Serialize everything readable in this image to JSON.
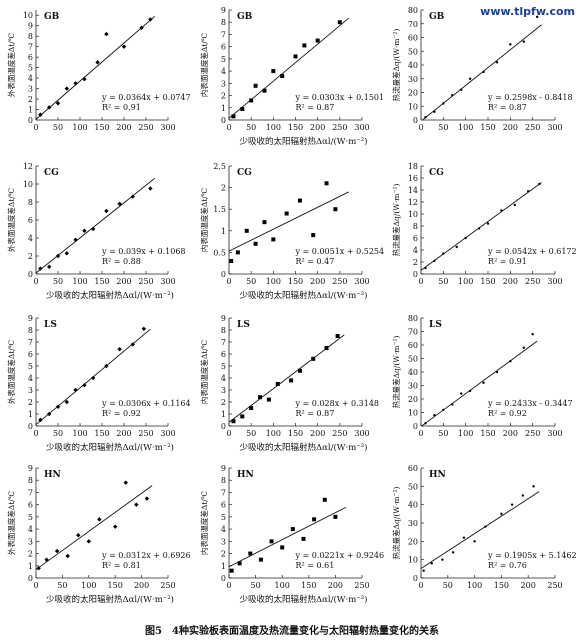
{
  "watermark": "www.tlpfw.com",
  "caption": "图5　4种实验板表面温度及热流量变化与太阳辐射热量变化的关系",
  "chart_data": [
    {
      "type": "scatter",
      "label": "GB",
      "marker": "diamond",
      "color": "#000000",
      "ylabel": "外表面温度差Δt/℃",
      "x": [
        10,
        30,
        50,
        70,
        90,
        110,
        140,
        160,
        200,
        240,
        260
      ],
      "values": [
        0.5,
        1.2,
        1.6,
        3.0,
        3.5,
        3.9,
        5.5,
        8.2,
        7.0,
        8.8,
        9.6
      ],
      "fit": {
        "x": [
          0,
          270
        ],
        "values": [
          0.07,
          9.9
        ]
      },
      "equation": "y = 0.0364x + 0.0747",
      "r2": "R² = 0.91",
      "xlim": [
        0,
        300
      ],
      "xticks": [
        0,
        50,
        100,
        150,
        200,
        250,
        300
      ],
      "ylim": [
        0,
        10.5
      ],
      "yticks": [
        0,
        1,
        2,
        3,
        4,
        5,
        6,
        7,
        8,
        9,
        10
      ]
    },
    {
      "type": "scatter",
      "label": "GB",
      "marker": "square",
      "color": "#000000",
      "ylabel": "内表面温度差Δt/℃",
      "xlabel": "少吸收的太阳辐射热Δαl/(W·m⁻²)",
      "x": [
        10,
        30,
        50,
        60,
        80,
        100,
        120,
        150,
        170,
        200,
        250
      ],
      "values": [
        0.3,
        0.9,
        1.6,
        2.8,
        2.4,
        4.0,
        3.6,
        5.2,
        6.1,
        6.5,
        8.0
      ],
      "fit": {
        "x": [
          0,
          270
        ],
        "values": [
          0.15,
          8.33
        ]
      },
      "equation": "y = 0.0303x + 0.1501",
      "r2": "R² = 0.87",
      "xlim": [
        0,
        300
      ],
      "xticks": [
        0,
        50,
        100,
        150,
        200,
        250,
        300
      ],
      "ylim": [
        0,
        9
      ],
      "yticks": [
        0,
        1,
        2,
        3,
        4,
        5,
        6,
        7,
        8,
        9
      ]
    },
    {
      "type": "scatter",
      "label": "GB",
      "marker": "dot",
      "color": "#000000",
      "ylabel": "热流量差Δq/(W·m⁻²)",
      "x": [
        10,
        30,
        50,
        70,
        90,
        110,
        140,
        170,
        200,
        230,
        260
      ],
      "values": [
        2,
        6,
        12,
        18,
        22,
        30,
        35,
        42,
        55,
        57,
        75
      ],
      "fit": {
        "x": [
          5,
          270
        ],
        "values": [
          0.46,
          69.3
        ]
      },
      "equation": "y = 0.2598x - 0.8418",
      "r2": "R² = 0.87",
      "xlim": [
        0,
        300
      ],
      "xticks": [
        0,
        50,
        100,
        150,
        200,
        250,
        300
      ],
      "ylim": [
        0,
        80
      ],
      "yticks": [
        0,
        10,
        20,
        30,
        40,
        50,
        60,
        70,
        80
      ]
    },
    {
      "type": "scatter",
      "label": "CG",
      "marker": "diamond",
      "color": "#000000",
      "ylabel": "外表面温度差Δt/℃",
      "xlabel": "少吸收的太阳辐射热Δαl/(W·m⁻²)",
      "x": [
        10,
        30,
        50,
        70,
        90,
        110,
        130,
        160,
        190,
        220,
        260
      ],
      "values": [
        0.6,
        0.8,
        2.0,
        2.3,
        3.8,
        4.8,
        5.0,
        7.0,
        7.8,
        8.6,
        9.5
      ],
      "fit": {
        "x": [
          0,
          270
        ],
        "values": [
          0.11,
          10.64
        ]
      },
      "equation": "y = 0.039x + 0.1068",
      "r2": "R² = 0.88",
      "xlim": [
        0,
        300
      ],
      "xticks": [
        0,
        50,
        100,
        150,
        200,
        250,
        300
      ],
      "ylim": [
        0,
        12
      ],
      "yticks": [
        0,
        2,
        4,
        6,
        8,
        10,
        12
      ]
    },
    {
      "type": "scatter",
      "label": "CG",
      "marker": "square",
      "color": "#000000",
      "ylabel": "内表面温度差Δt/℃",
      "xlabel": "少吸收的太阳辐射热Δαl/(W·m⁻²)",
      "x": [
        5,
        20,
        40,
        60,
        80,
        100,
        130,
        160,
        190,
        220,
        240
      ],
      "values": [
        0.3,
        0.5,
        1.0,
        0.7,
        1.2,
        0.8,
        1.4,
        1.7,
        0.9,
        2.1,
        1.5
      ],
      "fit": {
        "x": [
          0,
          270
        ],
        "values": [
          0.53,
          1.9
        ]
      },
      "equation": "y = 0.0051x + 0.5254",
      "r2": "R² = 0.47",
      "xlim": [
        0,
        300
      ],
      "xticks": [
        0,
        50,
        100,
        150,
        200,
        250,
        300
      ],
      "ylim": [
        0,
        2.5
      ],
      "yticks": [
        0,
        0.5,
        1,
        1.5,
        2,
        2.5
      ]
    },
    {
      "type": "scatter",
      "label": "CG",
      "marker": "dot",
      "color": "#000000",
      "ylabel": "热流量差Δq/(W·m⁻²)",
      "x": [
        10,
        30,
        50,
        80,
        100,
        130,
        150,
        180,
        210,
        240,
        265
      ],
      "values": [
        1.0,
        2.2,
        3.4,
        4.5,
        6.0,
        7.6,
        8.4,
        10.6,
        11.5,
        13.8,
        15.0
      ],
      "fit": {
        "x": [
          0,
          270
        ],
        "values": [
          0.62,
          15.25
        ]
      },
      "equation": "y = 0.0542x + 0.6172",
      "r2": "R² = 0.91",
      "xlim": [
        0,
        300
      ],
      "xticks": [
        0,
        50,
        100,
        150,
        200,
        250,
        300
      ],
      "ylim": [
        0,
        18
      ],
      "yticks": [
        0,
        2,
        4,
        6,
        8,
        10,
        12,
        14,
        16,
        18
      ]
    },
    {
      "type": "scatter",
      "label": "LS",
      "marker": "diamond",
      "color": "#000000",
      "ylabel": "外表面温度差Δt/℃",
      "xlabel": "少吸收的太阳辐射热Δαl/(W·m⁻²)",
      "x": [
        10,
        30,
        50,
        70,
        90,
        110,
        130,
        160,
        190,
        220,
        245
      ],
      "values": [
        0.5,
        1.0,
        1.6,
        2.0,
        3.0,
        3.4,
        4.0,
        5.0,
        6.4,
        6.8,
        8.1
      ],
      "fit": {
        "x": [
          0,
          260
        ],
        "values": [
          0.12,
          8.07
        ]
      },
      "equation": "y = 0.0306x + 0.1164",
      "r2": "R² = 0.92",
      "xlim": [
        0,
        300
      ],
      "xticks": [
        0,
        50,
        100,
        150,
        200,
        250,
        300
      ],
      "ylim": [
        0,
        9
      ],
      "yticks": [
        0,
        1,
        2,
        3,
        4,
        5,
        6,
        7,
        8,
        9
      ]
    },
    {
      "type": "scatter",
      "label": "LS",
      "marker": "square",
      "color": "#000000",
      "ylabel": "内表面温度差Δt/℃",
      "xlabel": "少吸收的太阳辐射热Δαl/(W·m⁻²)",
      "x": [
        10,
        30,
        50,
        70,
        90,
        110,
        140,
        160,
        190,
        220,
        245
      ],
      "values": [
        0.4,
        0.8,
        1.5,
        2.4,
        2.2,
        3.5,
        3.8,
        4.6,
        5.6,
        6.5,
        7.5
      ],
      "fit": {
        "x": [
          0,
          260
        ],
        "values": [
          0.31,
          7.59
        ]
      },
      "equation": "y = 0.028x + 0.3148",
      "r2": "R² = 0.87",
      "xlim": [
        0,
        300
      ],
      "xticks": [
        0,
        50,
        100,
        150,
        200,
        250,
        300
      ],
      "ylim": [
        0,
        9
      ],
      "yticks": [
        0,
        1,
        2,
        3,
        4,
        5,
        6,
        7,
        8,
        9
      ]
    },
    {
      "type": "scatter",
      "label": "LS",
      "marker": "dot",
      "color": "#000000",
      "ylabel": "热流量差Δq/(W·m⁻²)",
      "x": [
        10,
        30,
        50,
        70,
        90,
        110,
        140,
        170,
        200,
        230,
        250
      ],
      "values": [
        2,
        8,
        12,
        16,
        24,
        26,
        32,
        40,
        48,
        58,
        68
      ],
      "fit": {
        "x": [
          2,
          260
        ],
        "values": [
          0.14,
          62.9
        ]
      },
      "equation": "y = 0.2433x - 0.3447",
      "r2": "R² = 0.92",
      "xlim": [
        0,
        300
      ],
      "xticks": [
        0,
        50,
        100,
        150,
        200,
        250,
        300
      ],
      "ylim": [
        0,
        80
      ],
      "yticks": [
        0,
        10,
        20,
        30,
        40,
        50,
        60,
        70,
        80
      ]
    },
    {
      "type": "scatter",
      "label": "HN",
      "marker": "diamond",
      "color": "#000000",
      "ylabel": "外表面温度差Δt/℃",
      "xlabel": "少吸收的太阳辐射热Δαl/(W·m⁻²)",
      "x": [
        5,
        20,
        40,
        60,
        80,
        100,
        120,
        150,
        170,
        190,
        210
      ],
      "values": [
        0.8,
        1.5,
        2.2,
        1.8,
        3.5,
        3.0,
        4.8,
        4.2,
        7.8,
        6.0,
        6.5
      ],
      "fit": {
        "x": [
          0,
          220
        ],
        "values": [
          0.69,
          7.56
        ]
      },
      "equation": "y = 0.0312x + 0.6926",
      "r2": "R² = 0.81",
      "xlim": [
        0,
        250
      ],
      "xticks": [
        0,
        50,
        100,
        150,
        200,
        250
      ],
      "ylim": [
        0,
        9
      ],
      "yticks": [
        0,
        1,
        2,
        3,
        4,
        5,
        6,
        7,
        8,
        9
      ]
    },
    {
      "type": "scatter",
      "label": "HN",
      "marker": "square",
      "color": "#000000",
      "ylabel": "内表面温度差Δt/℃",
      "xlabel": "少吸收的太阳辐射热Δαl/(W·m⁻²)",
      "x": [
        5,
        20,
        40,
        60,
        80,
        100,
        120,
        140,
        160,
        180,
        200
      ],
      "values": [
        0.6,
        1.2,
        2.0,
        1.5,
        3.0,
        2.5,
        4.0,
        3.2,
        4.8,
        6.4,
        5.0
      ],
      "fit": {
        "x": [
          0,
          220
        ],
        "values": [
          0.92,
          5.79
        ]
      },
      "equation": "y = 0.0221x + 0.9246",
      "r2": "R² = 0.61",
      "xlim": [
        0,
        250
      ],
      "xticks": [
        0,
        50,
        100,
        150,
        200,
        250
      ],
      "ylim": [
        0,
        9
      ],
      "yticks": [
        0,
        1,
        2,
        3,
        4,
        5,
        6,
        7,
        8,
        9
      ]
    },
    {
      "type": "scatter",
      "label": "HN",
      "marker": "dot",
      "color": "#000000",
      "ylabel": "热流量差Δq/(W·m⁻²)",
      "x": [
        5,
        20,
        40,
        60,
        80,
        100,
        120,
        150,
        170,
        190,
        210
      ],
      "values": [
        4,
        8,
        10,
        14,
        22,
        20,
        28,
        35,
        40,
        45,
        50
      ],
      "fit": {
        "x": [
          0,
          220
        ],
        "values": [
          5.15,
          47.06
        ]
      },
      "equation": "y = 0.1905x + 5.1462",
      "r2": "R² = 0.76",
      "xlim": [
        0,
        250
      ],
      "xticks": [
        0,
        50,
        100,
        150,
        200,
        250
      ],
      "ylim": [
        0,
        60
      ],
      "yticks": [
        0,
        10,
        20,
        30,
        40,
        50,
        60
      ]
    }
  ]
}
